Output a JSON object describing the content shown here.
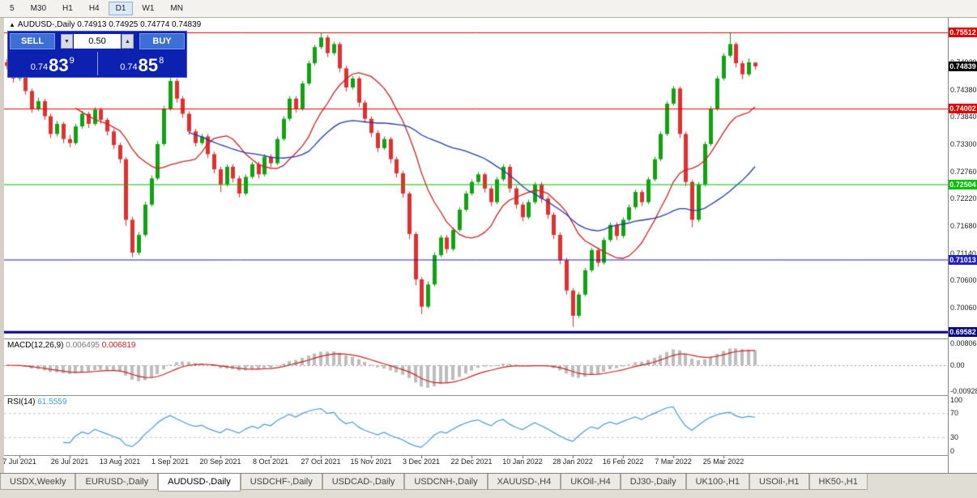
{
  "toolbar": {
    "timeframes": [
      "5",
      "M30",
      "H1",
      "H4",
      "D1",
      "W1",
      "MN"
    ],
    "active": "D1"
  },
  "header": {
    "collapse_icon": "▲",
    "symbol": "AUDUSD-,Daily",
    "ohlc": "0.74913 0.74925 0.74774 0.74839"
  },
  "trade_panel": {
    "sell_label": "SELL",
    "buy_label": "BUY",
    "volume": "0.50",
    "spin_down": "▼",
    "spin_up": "▲",
    "sell_price": {
      "prefix": "0.74",
      "main": "83",
      "sup": "9"
    },
    "buy_price": {
      "prefix": "0.74",
      "main": "85",
      "sup": "8"
    }
  },
  "macd_panel": {
    "name": "MACD(12,26,9)",
    "value_main": "0.006495",
    "value_signal": "0.006819",
    "axis": [
      {
        "label": "0.00806",
        "value": 0.00806
      },
      {
        "label": "0.00",
        "value": 0
      },
      {
        "label": "-0.00928",
        "value": -0.00928
      }
    ],
    "hist_color": "#bdbdbd",
    "signal_color": "#cc2020"
  },
  "rsi_panel": {
    "name": "RSI(14)",
    "value": "61.5559",
    "axis": [
      {
        "label": "100",
        "value": 100
      },
      {
        "label": "70",
        "value": 70
      },
      {
        "label": "30",
        "value": 30
      },
      {
        "label": "0",
        "value": 0
      }
    ],
    "levels": [
      70,
      30
    ],
    "color": "#4a9ad4"
  },
  "tabs": {
    "active_index": 2,
    "items": [
      "USDX,Weekly",
      "EURUSD-,Daily",
      "AUDUSD-,Daily",
      "USDCHF-,Daily",
      "USDCAD-,Daily",
      "USDCNH-,Daily",
      "XAUUSD-,H4",
      "UKOil-,H4",
      "DJ30-,Daily",
      "UK100-,H1",
      "USOil-,H1",
      "HK50-,H1"
    ]
  },
  "chart_data": {
    "type": "candlestick",
    "title": "AUDUSD-,Daily",
    "price_range": {
      "top": 0.758,
      "bottom": 0.6945
    },
    "colors": {
      "up": "#12a112",
      "down": "#e03030"
    },
    "ma": [
      {
        "period": 12,
        "color": "#cc2222"
      },
      {
        "period": 30,
        "color": "#223baa"
      }
    ],
    "levels": [
      {
        "price": 0.75512,
        "label": "0.75512",
        "color": "#e00000",
        "width": 1
      },
      {
        "price": 0.74002,
        "label": "0.74002",
        "color": "#e00000",
        "width": 1
      },
      {
        "price": 0.72504,
        "label": "0.72504",
        "color": "#00c000",
        "width": 1
      },
      {
        "price": 0.71013,
        "label": "0.71013",
        "color": "#2020c0",
        "width": 1
      },
      {
        "price": 0.69582,
        "label": "0.69582",
        "color": "#000080",
        "width": 3
      }
    ],
    "current_price": {
      "value": 0.74839,
      "label": "0.74839",
      "tag_bg": "#000000"
    },
    "axis_ticks": [
      0.7492,
      0.7438,
      0.7384,
      0.733,
      0.7276,
      0.7222,
      0.7168,
      0.7114,
      0.706,
      0.7006
    ],
    "date_labels": [
      {
        "text": "7 Jul 2021",
        "bar": 2
      },
      {
        "text": "26 Jul 2021",
        "bar": 10
      },
      {
        "text": "13 Aug 2021",
        "bar": 18
      },
      {
        "text": "1 Sep 2021",
        "bar": 26
      },
      {
        "text": "20 Sep 2021",
        "bar": 34
      },
      {
        "text": "8 Oct 2021",
        "bar": 42
      },
      {
        "text": "27 Oct 2021",
        "bar": 50
      },
      {
        "text": "15 Nov 2021",
        "bar": 58
      },
      {
        "text": "3 Dec 2021",
        "bar": 66
      },
      {
        "text": "22 Dec 2021",
        "bar": 74
      },
      {
        "text": "10 Jan 2022",
        "bar": 82
      },
      {
        "text": "28 Jan 2022",
        "bar": 90
      },
      {
        "text": "16 Feb 2022",
        "bar": 98
      },
      {
        "text": "7 Mar 2022",
        "bar": 106
      },
      {
        "text": "25 Mar 2022",
        "bar": 114
      }
    ],
    "candles": [
      [
        0.7492,
        0.7498,
        0.7478,
        0.7485
      ],
      [
        0.7485,
        0.749,
        0.7452,
        0.746
      ],
      [
        0.746,
        0.7484,
        0.7455,
        0.7478
      ],
      [
        0.7478,
        0.7482,
        0.7428,
        0.7435
      ],
      [
        0.7435,
        0.744,
        0.7392,
        0.74
      ],
      [
        0.74,
        0.7422,
        0.7395,
        0.7415
      ],
      [
        0.7415,
        0.742,
        0.7378,
        0.7385
      ],
      [
        0.7385,
        0.739,
        0.7342,
        0.735
      ],
      [
        0.735,
        0.7376,
        0.7345,
        0.737
      ],
      [
        0.737,
        0.7374,
        0.7332,
        0.734
      ],
      [
        0.734,
        0.7348,
        0.7324,
        0.7332
      ],
      [
        0.7332,
        0.737,
        0.7328,
        0.7365
      ],
      [
        0.7365,
        0.7396,
        0.736,
        0.739
      ],
      [
        0.739,
        0.7394,
        0.7362,
        0.737
      ],
      [
        0.737,
        0.7403,
        0.7366,
        0.7398
      ],
      [
        0.7398,
        0.7402,
        0.737,
        0.7378
      ],
      [
        0.7378,
        0.7382,
        0.7347,
        0.7355
      ],
      [
        0.7355,
        0.736,
        0.732,
        0.7328
      ],
      [
        0.7328,
        0.7333,
        0.7292,
        0.73
      ],
      [
        0.73,
        0.7304,
        0.7168,
        0.718
      ],
      [
        0.718,
        0.7186,
        0.7106,
        0.7115
      ],
      [
        0.7115,
        0.7156,
        0.711,
        0.715
      ],
      [
        0.715,
        0.7216,
        0.7146,
        0.721
      ],
      [
        0.721,
        0.7268,
        0.7206,
        0.7262
      ],
      [
        0.7262,
        0.7336,
        0.7258,
        0.733
      ],
      [
        0.733,
        0.7406,
        0.7326,
        0.74
      ],
      [
        0.74,
        0.7468,
        0.7396,
        0.7455
      ],
      [
        0.7455,
        0.746,
        0.7412,
        0.742
      ],
      [
        0.742,
        0.7425,
        0.7382,
        0.739
      ],
      [
        0.739,
        0.7395,
        0.7348,
        0.7355
      ],
      [
        0.7355,
        0.736,
        0.7325,
        0.7332
      ],
      [
        0.7332,
        0.735,
        0.7328,
        0.7345
      ],
      [
        0.7345,
        0.735,
        0.7302,
        0.731
      ],
      [
        0.731,
        0.7315,
        0.7272,
        0.728
      ],
      [
        0.728,
        0.7285,
        0.7235,
        0.725
      ],
      [
        0.725,
        0.729,
        0.7246,
        0.7285
      ],
      [
        0.7285,
        0.729,
        0.7254,
        0.7262
      ],
      [
        0.7262,
        0.7267,
        0.7224,
        0.7232
      ],
      [
        0.7232,
        0.727,
        0.7228,
        0.7265
      ],
      [
        0.7265,
        0.7295,
        0.7261,
        0.729
      ],
      [
        0.729,
        0.7295,
        0.7262,
        0.727
      ],
      [
        0.727,
        0.731,
        0.7266,
        0.7305
      ],
      [
        0.7305,
        0.731,
        0.7284,
        0.7292
      ],
      [
        0.7292,
        0.7345,
        0.7288,
        0.734
      ],
      [
        0.734,
        0.7385,
        0.7336,
        0.738
      ],
      [
        0.738,
        0.7425,
        0.7376,
        0.742
      ],
      [
        0.742,
        0.7425,
        0.7392,
        0.74
      ],
      [
        0.74,
        0.7455,
        0.7396,
        0.745
      ],
      [
        0.745,
        0.7495,
        0.7446,
        0.749
      ],
      [
        0.749,
        0.7527,
        0.7486,
        0.7522
      ],
      [
        0.7522,
        0.7551,
        0.7518,
        0.7541
      ],
      [
        0.7541,
        0.7546,
        0.7502,
        0.751
      ],
      [
        0.751,
        0.7533,
        0.7506,
        0.7528
      ],
      [
        0.7528,
        0.7532,
        0.7472,
        0.748
      ],
      [
        0.748,
        0.7485,
        0.7434,
        0.7442
      ],
      [
        0.7442,
        0.7465,
        0.7438,
        0.746
      ],
      [
        0.746,
        0.7464,
        0.7404,
        0.7412
      ],
      [
        0.7412,
        0.7417,
        0.7372,
        0.738
      ],
      [
        0.738,
        0.7385,
        0.7344,
        0.7352
      ],
      [
        0.7352,
        0.7357,
        0.7314,
        0.7322
      ],
      [
        0.7322,
        0.7345,
        0.7318,
        0.734
      ],
      [
        0.734,
        0.7344,
        0.7292,
        0.73
      ],
      [
        0.73,
        0.7305,
        0.7264,
        0.7272
      ],
      [
        0.7272,
        0.7277,
        0.7224,
        0.7232
      ],
      [
        0.7232,
        0.7236,
        0.7142,
        0.7152
      ],
      [
        0.7152,
        0.7156,
        0.705,
        0.7062
      ],
      [
        0.7062,
        0.7066,
        0.6993,
        0.7008
      ],
      [
        0.7008,
        0.7058,
        0.7004,
        0.7052
      ],
      [
        0.7052,
        0.7116,
        0.7048,
        0.711
      ],
      [
        0.711,
        0.715,
        0.7106,
        0.7145
      ],
      [
        0.7145,
        0.715,
        0.7114,
        0.7122
      ],
      [
        0.7122,
        0.7165,
        0.7118,
        0.716
      ],
      [
        0.716,
        0.7205,
        0.7156,
        0.72
      ],
      [
        0.72,
        0.7237,
        0.7196,
        0.7232
      ],
      [
        0.7232,
        0.726,
        0.7228,
        0.7255
      ],
      [
        0.7255,
        0.7275,
        0.7251,
        0.727
      ],
      [
        0.727,
        0.7274,
        0.7234,
        0.7242
      ],
      [
        0.7242,
        0.7247,
        0.7207,
        0.7215
      ],
      [
        0.7215,
        0.7265,
        0.7211,
        0.726
      ],
      [
        0.726,
        0.729,
        0.7256,
        0.7285
      ],
      [
        0.7285,
        0.729,
        0.7234,
        0.7242
      ],
      [
        0.7242,
        0.7247,
        0.7202,
        0.721
      ],
      [
        0.721,
        0.7215,
        0.7177,
        0.7185
      ],
      [
        0.7185,
        0.722,
        0.7181,
        0.7215
      ],
      [
        0.7215,
        0.7255,
        0.7211,
        0.725
      ],
      [
        0.725,
        0.7255,
        0.7214,
        0.7222
      ],
      [
        0.7222,
        0.7227,
        0.7182,
        0.719
      ],
      [
        0.719,
        0.7195,
        0.7142,
        0.715
      ],
      [
        0.715,
        0.7155,
        0.7092,
        0.71
      ],
      [
        0.71,
        0.7105,
        0.7032,
        0.704
      ],
      [
        0.704,
        0.7045,
        0.6968,
        0.699
      ],
      [
        0.699,
        0.7037,
        0.6986,
        0.7032
      ],
      [
        0.7032,
        0.7085,
        0.7028,
        0.708
      ],
      [
        0.708,
        0.7125,
        0.7076,
        0.712
      ],
      [
        0.712,
        0.7125,
        0.7087,
        0.7095
      ],
      [
        0.7095,
        0.7145,
        0.7091,
        0.714
      ],
      [
        0.714,
        0.7175,
        0.7136,
        0.717
      ],
      [
        0.717,
        0.7175,
        0.714,
        0.7148
      ],
      [
        0.7148,
        0.7185,
        0.7144,
        0.718
      ],
      [
        0.718,
        0.721,
        0.7176,
        0.7205
      ],
      [
        0.7205,
        0.724,
        0.7201,
        0.7235
      ],
      [
        0.7235,
        0.724,
        0.7207,
        0.7215
      ],
      [
        0.7215,
        0.7265,
        0.7211,
        0.726
      ],
      [
        0.726,
        0.7305,
        0.7256,
        0.73
      ],
      [
        0.73,
        0.7355,
        0.7296,
        0.735
      ],
      [
        0.735,
        0.7415,
        0.7346,
        0.741
      ],
      [
        0.741,
        0.7445,
        0.7406,
        0.744
      ],
      [
        0.744,
        0.7444,
        0.7342,
        0.735
      ],
      [
        0.735,
        0.7355,
        0.7247,
        0.7255
      ],
      [
        0.7255,
        0.7259,
        0.7165,
        0.718
      ],
      [
        0.718,
        0.7255,
        0.7176,
        0.725
      ],
      [
        0.725,
        0.7335,
        0.7246,
        0.733
      ],
      [
        0.733,
        0.7405,
        0.7326,
        0.74
      ],
      [
        0.74,
        0.7465,
        0.7396,
        0.746
      ],
      [
        0.746,
        0.751,
        0.7456,
        0.7505
      ],
      [
        0.7505,
        0.7551,
        0.7501,
        0.7528
      ],
      [
        0.7528,
        0.7532,
        0.7482,
        0.749
      ],
      [
        0.749,
        0.7495,
        0.7458,
        0.7468
      ],
      [
        0.7468,
        0.75,
        0.7464,
        0.7492
      ],
      [
        0.74913,
        0.74925,
        0.74774,
        0.74839
      ]
    ]
  }
}
